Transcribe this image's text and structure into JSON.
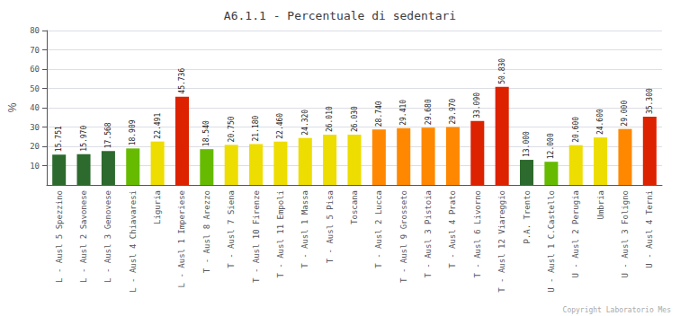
{
  "chart_data": {
    "type": "bar",
    "title": "A6.1.1 - Percentuale di sedentari",
    "ylabel": "%",
    "annotations": [
      "Copyright Laboratorio Mes"
    ],
    "categories": [
      "L - Ausl 5 Spezzino",
      "L - Ausl 2 Savonese",
      "L - Ausl 3 Genovese",
      "L - Ausl 4 Chiavaresi",
      "Liguria",
      "L - Ausl 1 Imperiese",
      "T - Ausl 8 Arezzo",
      "T - Ausl 7 Siena",
      "T - Ausl 10 Firenze",
      "T - Ausl 11 Empoli",
      "T - Ausl 1 Massa",
      "T - Ausl 5 Pisa",
      "Toscana",
      "T - Ausl 2 Lucca",
      "T - Ausl 9 Grosseto",
      "T - Ausl 3 Pistoia",
      "T - Ausl 4 Prato",
      "T - Ausl 6 Livorno",
      "T - Ausl 12 Viareggio",
      "P.A. Trento",
      "U - Ausl 1 C.Castello",
      "U - Ausl 2 Perugia",
      "Umbria",
      "U - Ausl 3 Foligno",
      "U - Ausl 4 Terni"
    ],
    "values": [
      15.751,
      15.97,
      17.568,
      18.909,
      22.491,
      45.736,
      18.54,
      20.75,
      21.18,
      22.46,
      24.32,
      26.01,
      26.03,
      28.74,
      29.41,
      29.68,
      29.97,
      33.09,
      50.83,
      13.0,
      12.0,
      20.6,
      24.6,
      29.0,
      35.3
    ],
    "value_labels": [
      "15.751",
      "15.970",
      "17.568",
      "18.909",
      "22.491",
      "45.736",
      "18.540",
      "20.750",
      "21.180",
      "22.460",
      "24.320",
      "26.010",
      "26.030",
      "28.740",
      "29.410",
      "29.680",
      "29.970",
      "33.090",
      "50.830",
      "13.000",
      "12.000",
      "20.600",
      "24.600",
      "29.000",
      "35.300"
    ],
    "colors": [
      "#2d6a2d",
      "#2d6a2d",
      "#2d6a2d",
      "#66bb00",
      "#eedd00",
      "#dd2200",
      "#66bb00",
      "#eedd00",
      "#eedd00",
      "#eedd00",
      "#eedd00",
      "#eedd00",
      "#eedd00",
      "#ff8800",
      "#ff8800",
      "#ff8800",
      "#ff8800",
      "#dd2200",
      "#dd2200",
      "#2d6a2d",
      "#66bb00",
      "#eedd00",
      "#eedd00",
      "#ff8800",
      "#dd2200"
    ],
    "ylim": [
      0,
      80
    ],
    "yticks": [
      10,
      20,
      30,
      40,
      50,
      60,
      70,
      80
    ],
    "grid": true,
    "data_labels": true
  }
}
